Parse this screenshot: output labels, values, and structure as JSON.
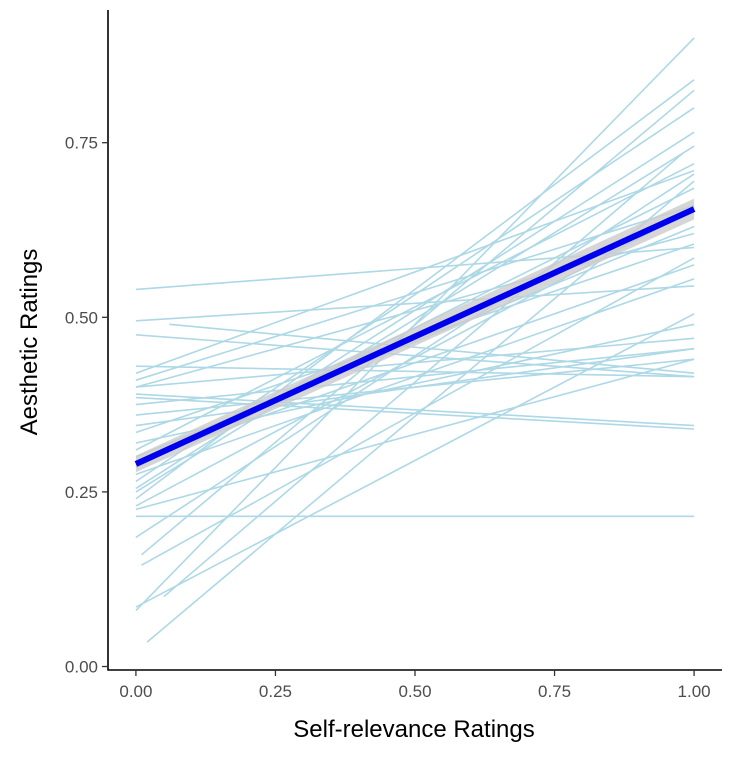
{
  "chart_data": {
    "type": "line",
    "title": "",
    "xlabel": "Self-relevance Ratings",
    "ylabel": "Aesthetic Ratings",
    "xlim": [
      -0.05,
      1.05
    ],
    "ylim": [
      -0.005,
      0.94
    ],
    "x_ticks": [
      0.0,
      0.25,
      0.5,
      0.75,
      1.0
    ],
    "x_tick_labels": [
      "0.00",
      "0.25",
      "0.50",
      "0.75",
      "1.00"
    ],
    "y_ticks": [
      0.0,
      0.25,
      0.5,
      0.75
    ],
    "y_tick_labels": [
      "0.00",
      "0.25",
      "0.50",
      "0.75"
    ],
    "grid": false,
    "legend": "none",
    "colors": {
      "individual": "#add8e6",
      "fit": "#0000ee",
      "ribbon": "#cccccc",
      "axis": "#000000",
      "tick_text": "#4d4d4d"
    },
    "fit": {
      "x": [
        0.0,
        1.0
      ],
      "y": [
        0.29,
        0.655
      ],
      "ribbon_halfwidth": [
        0.012,
        0.015
      ]
    },
    "individual_lines": [
      {
        "x": [
          0.0,
          1.0
        ],
        "y": [
          0.54,
          0.6
        ]
      },
      {
        "x": [
          0.0,
          1.0
        ],
        "y": [
          0.495,
          0.545
        ]
      },
      {
        "x": [
          0.0,
          1.0
        ],
        "y": [
          0.475,
          0.415
        ]
      },
      {
        "x": [
          0.06,
          1.0
        ],
        "y": [
          0.49,
          0.42
        ]
      },
      {
        "x": [
          0.0,
          1.0
        ],
        "y": [
          0.41,
          0.66
        ]
      },
      {
        "x": [
          0.0,
          1.0
        ],
        "y": [
          0.4,
          0.47
        ]
      },
      {
        "x": [
          0.0,
          1.0
        ],
        "y": [
          0.39,
          0.345
        ]
      },
      {
        "x": [
          0.0,
          1.0
        ],
        "y": [
          0.385,
          0.34
        ]
      },
      {
        "x": [
          0.0,
          1.0
        ],
        "y": [
          0.375,
          0.455
        ]
      },
      {
        "x": [
          0.0,
          1.0
        ],
        "y": [
          0.36,
          0.44
        ]
      },
      {
        "x": [
          0.0,
          1.0
        ],
        "y": [
          0.335,
          0.605
        ]
      },
      {
        "x": [
          0.0,
          1.0
        ],
        "y": [
          0.32,
          0.49
        ]
      },
      {
        "x": [
          0.0,
          1.0
        ],
        "y": [
          0.31,
          0.72
        ]
      },
      {
        "x": [
          0.0,
          1.0
        ],
        "y": [
          0.3,
          0.63
        ]
      },
      {
        "x": [
          0.0,
          1.0
        ],
        "y": [
          0.285,
          0.685
        ]
      },
      {
        "x": [
          0.0,
          1.0
        ],
        "y": [
          0.275,
          0.555
        ]
      },
      {
        "x": [
          0.0,
          1.0
        ],
        "y": [
          0.265,
          0.8
        ]
      },
      {
        "x": [
          0.0,
          1.0
        ],
        "y": [
          0.25,
          0.745
        ]
      },
      {
        "x": [
          0.0,
          1.0
        ],
        "y": [
          0.24,
          0.84
        ]
      },
      {
        "x": [
          0.0,
          1.0
        ],
        "y": [
          0.23,
          0.655
        ]
      },
      {
        "x": [
          0.0,
          1.0
        ],
        "y": [
          0.215,
          0.215
        ]
      },
      {
        "x": [
          0.0,
          1.0
        ],
        "y": [
          0.185,
          0.705
        ]
      },
      {
        "x": [
          0.01,
          1.0
        ],
        "y": [
          0.16,
          0.825
        ]
      },
      {
        "x": [
          0.01,
          1.0
        ],
        "y": [
          0.145,
          0.585
        ]
      },
      {
        "x": [
          0.0,
          1.0
        ],
        "y": [
          0.08,
          0.9
        ]
      },
      {
        "x": [
          0.0,
          1.0
        ],
        "y": [
          0.085,
          0.505
        ]
      },
      {
        "x": [
          0.02,
          1.0
        ],
        "y": [
          0.035,
          0.695
        ]
      },
      {
        "x": [
          0.0,
          1.0
        ],
        "y": [
          0.225,
          0.44
        ]
      },
      {
        "x": [
          0.0,
          1.0
        ],
        "y": [
          0.4,
          0.62
        ]
      },
      {
        "x": [
          0.0,
          1.0
        ],
        "y": [
          0.345,
          0.455
        ]
      },
      {
        "x": [
          0.0,
          1.0
        ],
        "y": [
          0.43,
          0.415
        ]
      },
      {
        "x": [
          0.0,
          1.0
        ],
        "y": [
          0.295,
          0.575
        ]
      },
      {
        "x": [
          0.0,
          1.0
        ],
        "y": [
          0.255,
          0.765
        ]
      },
      {
        "x": [
          0.0,
          1.0
        ],
        "y": [
          0.42,
          0.71
        ]
      },
      {
        "x": [
          0.05,
          0.98
        ],
        "y": [
          0.1,
          0.735
        ]
      }
    ]
  }
}
